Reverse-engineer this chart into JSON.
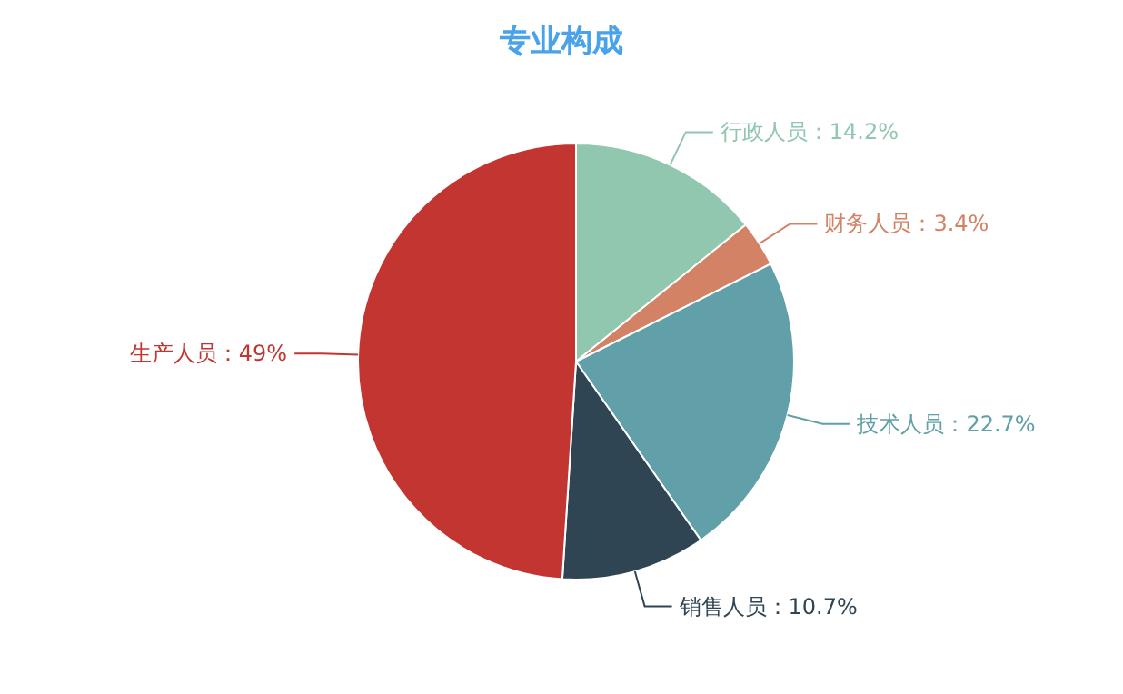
{
  "chart_data": {
    "type": "pie",
    "title": "专业构成",
    "categories": [
      "行政人员",
      "财务人员",
      "技术人员",
      "销售人员",
      "生产人员"
    ],
    "values": [
      14.2,
      3.4,
      22.7,
      10.7,
      49
    ],
    "colors": [
      "#91c7ae",
      "#d48265",
      "#61a0a8",
      "#2f4554",
      "#c23531"
    ],
    "value_labels": [
      "：14.2%",
      "：3.4%",
      "：22.7%",
      "：10.7%",
      "：49%"
    ]
  }
}
